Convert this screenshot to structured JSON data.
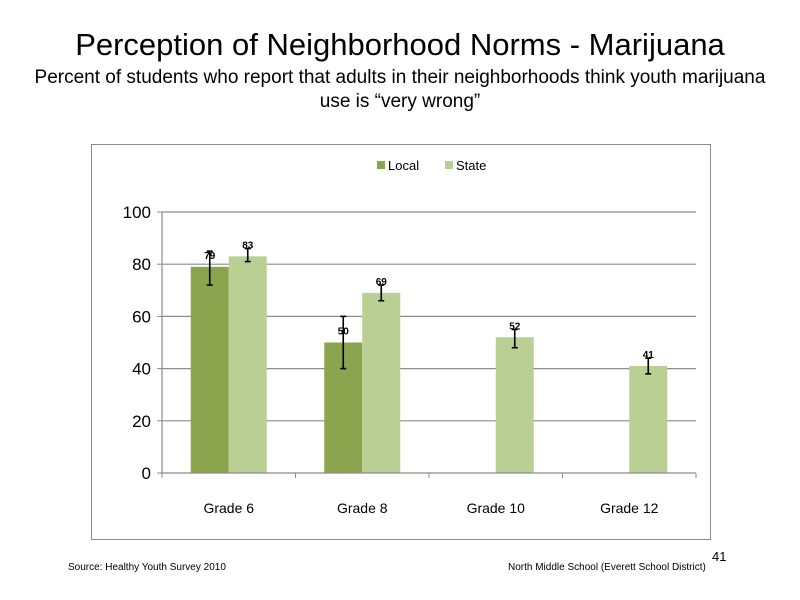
{
  "slide": {
    "title": "Perception  of Neighborhood  Norms - Marijuana",
    "subtitle": "Percent of students  who report that adults in their neighborhoods  think  youth marijuana  use is “very wrong”",
    "source": "Source: Healthy  Youth Survey 2010",
    "school": "North Middle  School (Everett School District)",
    "page_number": "41"
  },
  "chart_data": {
    "type": "bar",
    "title": "",
    "xlabel": "",
    "ylabel": "",
    "categories": [
      "Grade 6",
      "Grade 8",
      "Grade 10",
      "Grade 12"
    ],
    "series": [
      {
        "name": "Local",
        "color": "#8aa54e",
        "values": [
          79,
          50,
          null,
          null
        ],
        "error_low": [
          72,
          40,
          null,
          null
        ],
        "error_high": [
          85,
          60,
          null,
          null
        ]
      },
      {
        "name": "State",
        "color": "#b9cf93",
        "values": [
          83,
          69,
          52,
          41
        ],
        "error_low": [
          81,
          66,
          48,
          38
        ],
        "error_high": [
          86,
          72,
          55,
          44
        ]
      }
    ],
    "ylim": [
      0,
      100
    ],
    "yticks": [
      0,
      20,
      40,
      60,
      80,
      100
    ],
    "grid": true,
    "legend_position": "top-center",
    "gridline_color": "#8c8c8c"
  }
}
